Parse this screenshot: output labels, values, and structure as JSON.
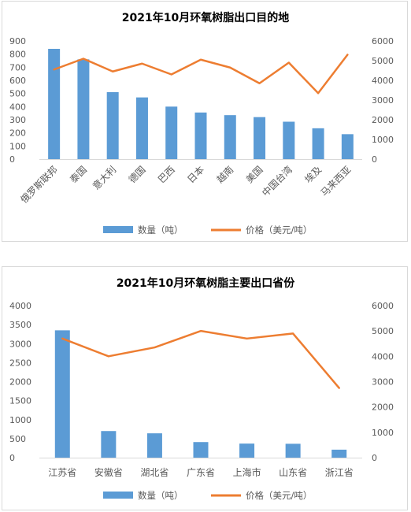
{
  "chart_data": [
    {
      "type": "bar",
      "title": "2021年10月环氧树脂出口目的地",
      "categories": [
        "俄罗斯联邦",
        "泰国",
        "意大利",
        "德国",
        "巴西",
        "日本",
        "越南",
        "美国",
        "中国台湾",
        "埃及",
        "马来西亚"
      ],
      "series": [
        {
          "name": "数量（吨）",
          "type": "bar",
          "axis": "left",
          "color": "#5b9bd5",
          "values": [
            840,
            760,
            510,
            470,
            400,
            355,
            335,
            320,
            285,
            235,
            190
          ]
        },
        {
          "name": "价格（美元/吨）",
          "type": "line",
          "axis": "right",
          "color": "#ed7d31",
          "values": [
            4550,
            5100,
            4450,
            4850,
            4300,
            5050,
            4650,
            3850,
            4900,
            3350,
            5300
          ]
        }
      ],
      "y_left": {
        "lim": [
          0,
          900
        ],
        "ticks": [
          0,
          100,
          200,
          300,
          400,
          500,
          600,
          700,
          800,
          900
        ]
      },
      "y_right": {
        "lim": [
          0,
          6000
        ],
        "ticks": [
          0,
          1000,
          2000,
          3000,
          4000,
          5000,
          6000
        ]
      },
      "xlabel_rotated": true,
      "legend_position": "bottom",
      "grid": false
    },
    {
      "type": "bar",
      "title": "2021年10月环氧树脂主要出口省份",
      "categories": [
        "江苏省",
        "安徽省",
        "湖北省",
        "广东省",
        "上海市",
        "山东省",
        "浙江省"
      ],
      "series": [
        {
          "name": "数量（吨）",
          "type": "bar",
          "axis": "left",
          "color": "#5b9bd5",
          "values": [
            3350,
            700,
            640,
            410,
            370,
            365,
            210
          ]
        },
        {
          "name": "价格（美元/吨）",
          "type": "line",
          "axis": "right",
          "color": "#ed7d31",
          "values": [
            4700,
            4000,
            4350,
            5000,
            4700,
            4900,
            2750
          ]
        }
      ],
      "y_left": {
        "lim": [
          0,
          4000
        ],
        "ticks": [
          0,
          500,
          1000,
          1500,
          2000,
          2500,
          3000,
          3500,
          4000
        ]
      },
      "y_right": {
        "lim": [
          0,
          6000
        ],
        "ticks": [
          0,
          1000,
          2000,
          3000,
          4000,
          5000,
          6000
        ]
      },
      "xlabel_rotated": false,
      "legend_position": "bottom",
      "grid": false
    }
  ]
}
